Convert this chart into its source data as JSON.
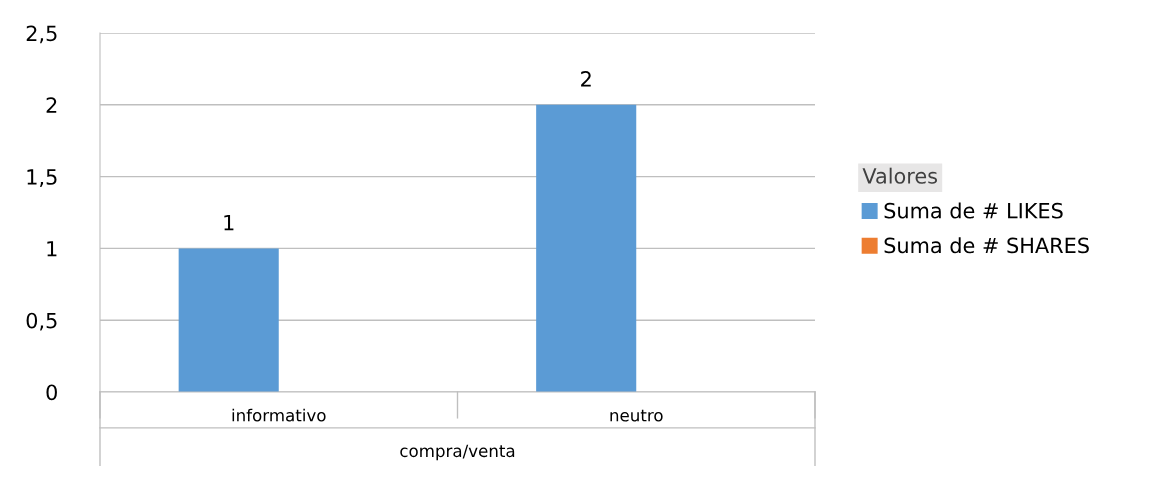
{
  "chart_data": {
    "type": "bar",
    "categories": [
      "informativo",
      "neutro"
    ],
    "xlabel": "compra/venta",
    "legend_title": "Valores",
    "series": [
      {
        "name": "Suma de # LIKES",
        "color": "#5b9bd5",
        "values": [
          1,
          2
        ],
        "value_labels": [
          "1",
          "2"
        ]
      },
      {
        "name": "Suma de # SHARES",
        "color": "#ed7d31",
        "values": [
          null,
          null
        ]
      }
    ],
    "ylim": [
      0,
      2.5
    ],
    "yticks": [
      0,
      {
        "value": 0.5,
        "label": "0,5"
      },
      1,
      {
        "value": 1.5,
        "label": "1,5"
      },
      2,
      {
        "value": 2.5,
        "label": "2,5"
      }
    ],
    "grid": "y",
    "legend": "right"
  }
}
